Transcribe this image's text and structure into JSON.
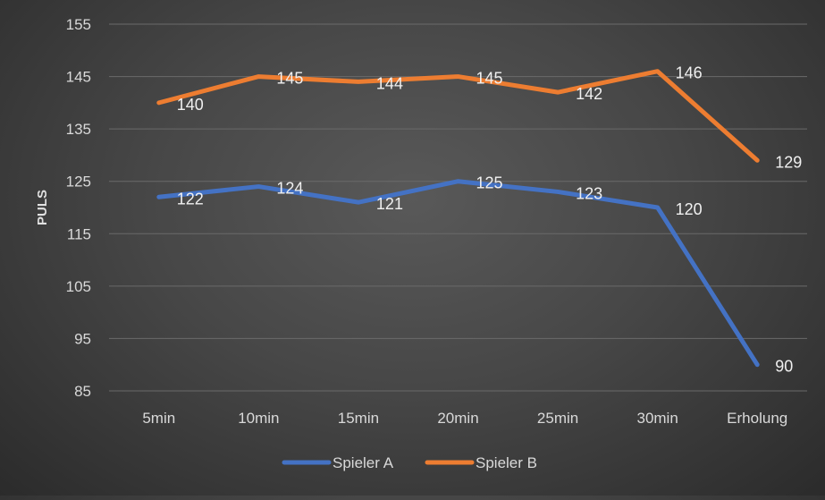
{
  "chart_data": {
    "type": "line",
    "title": "",
    "xlabel": "",
    "ylabel": "PULS",
    "categories": [
      "5min",
      "10min",
      "15min",
      "20min",
      "25min",
      "30min",
      "Erholung"
    ],
    "ylim": [
      85,
      155
    ],
    "yticks": [
      "85",
      "95",
      "105",
      "115",
      "125",
      "135",
      "145",
      "155"
    ],
    "grid": true,
    "legend_position": "bottom",
    "series": [
      {
        "name": "Spieler A",
        "color": "#4472C4",
        "values": [
          122,
          124,
          121,
          125,
          123,
          120,
          90
        ]
      },
      {
        "name": "Spieler B",
        "color": "#ED7D31",
        "values": [
          140,
          145,
          144,
          145,
          142,
          146,
          129
        ]
      }
    ]
  }
}
